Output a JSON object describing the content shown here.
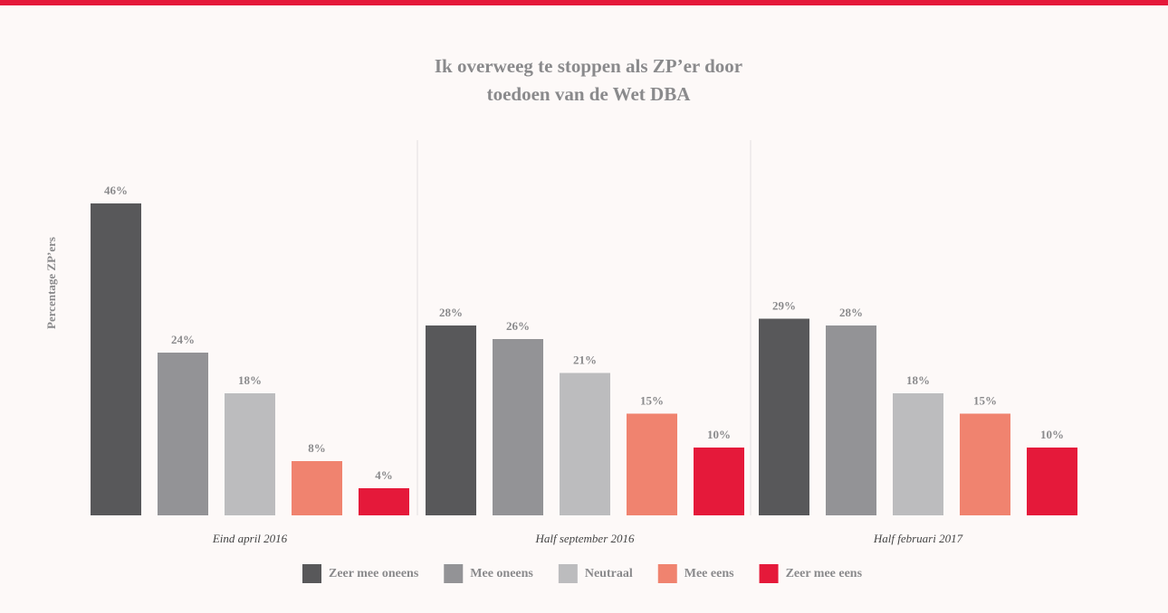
{
  "chart_data": {
    "type": "bar",
    "title": "Ik overweeg te stoppen als ZP’er door toedoen van de Wet DBA",
    "y_label": "Percentage ZP’ers",
    "categories": [
      "Eind april 2016",
      "Half september 2016",
      "Half februari 2017"
    ],
    "series": [
      {
        "name": "Zeer mee oneens",
        "color": "#58585a",
        "values": [
          46,
          28,
          29
        ],
        "value_labels": [
          "46%",
          "28%",
          "29%"
        ]
      },
      {
        "name": "Mee oneens",
        "color": "#939396",
        "values": [
          24,
          26,
          28
        ],
        "value_labels": [
          "24%",
          "26%",
          "28%"
        ]
      },
      {
        "name": "Neutraal",
        "color": "#bcbcbe",
        "values": [
          18,
          21,
          18
        ],
        "value_labels": [
          "18%",
          "21%",
          "18%"
        ]
      },
      {
        "name": "Mee eens",
        "color": "#f0836f",
        "values": [
          8,
          15,
          15
        ],
        "value_labels": [
          "8%",
          "15%",
          "15%"
        ]
      },
      {
        "name": "Zeer mee eens",
        "color": "#e5193a",
        "values": [
          4,
          10,
          10
        ],
        "value_labels": [
          "4%",
          "10%",
          "10%"
        ]
      }
    ],
    "legend": "bottom"
  }
}
